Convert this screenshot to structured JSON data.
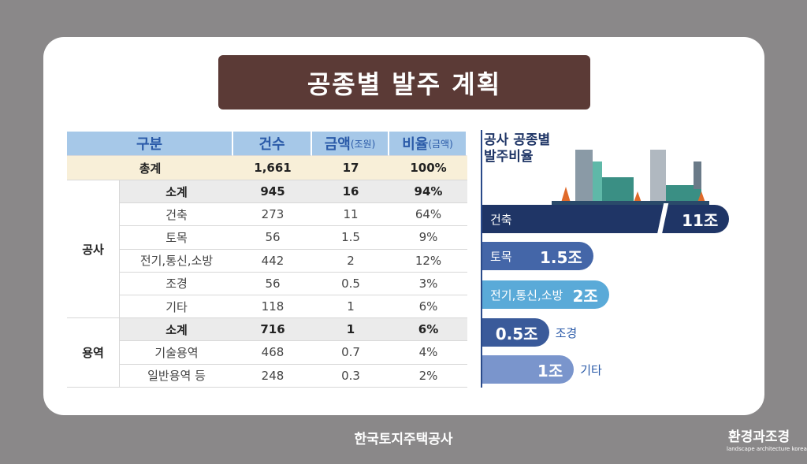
{
  "title": "공종별 발주 계획",
  "table": {
    "header": [
      {
        "main": "구분"
      },
      {
        "main": "건수"
      },
      {
        "main": "금액",
        "sub": "(조원)"
      },
      {
        "main": "비율",
        "sub": "(금액)"
      }
    ],
    "total": {
      "label": "총계",
      "cells": [
        "1,661",
        "17",
        "100%"
      ]
    },
    "groups": [
      {
        "name": "공사",
        "rows": [
          {
            "label": "소계",
            "cells": [
              "945",
              "16",
              "94%"
            ]
          },
          {
            "label": "건축",
            "cells": [
              "273",
              "11",
              "64%"
            ]
          },
          {
            "label": "토목",
            "cells": [
              "56",
              "1.5",
              "9%"
            ]
          },
          {
            "label": "전기,통신,소방",
            "cells": [
              "442",
              "2",
              "12%"
            ]
          },
          {
            "label": "조경",
            "cells": [
              "56",
              "0.5",
              "3%"
            ]
          },
          {
            "label": "기타",
            "cells": [
              "118",
              "1",
              "6%"
            ]
          }
        ]
      },
      {
        "name": "용역",
        "rows": [
          {
            "label": "소계",
            "cells": [
              "716",
              "1",
              "6%"
            ]
          },
          {
            "label": "기술용역",
            "cells": [
              "468",
              "0.7",
              "4%"
            ]
          },
          {
            "label": "일반용역 등",
            "cells": [
              "248",
              "0.3",
              "2%"
            ]
          }
        ]
      }
    ]
  },
  "side_chart": {
    "title": [
      "공사 공종별",
      "발주비율"
    ],
    "bars": [
      {
        "label": "건축",
        "value": 11,
        "value_label": "11조",
        "color": "#1f3566"
      },
      {
        "label": "토목",
        "value": 1.5,
        "value_label": "1.5조",
        "color": "#4466a8"
      },
      {
        "label": "전기,통신,소방",
        "value": 2,
        "value_label": "2조",
        "color": "#5aaad8"
      },
      {
        "label": "조경",
        "value": 0.5,
        "value_label": "0.5조",
        "color": "#3a5a9a"
      },
      {
        "label": "기타",
        "value": 1,
        "value_label": "1조",
        "color": "#7a95cc"
      }
    ]
  },
  "footer": "한국토지주택공사",
  "watermark": {
    "name": "환경과조경",
    "subtitle": "landscape architecture korea"
  }
}
